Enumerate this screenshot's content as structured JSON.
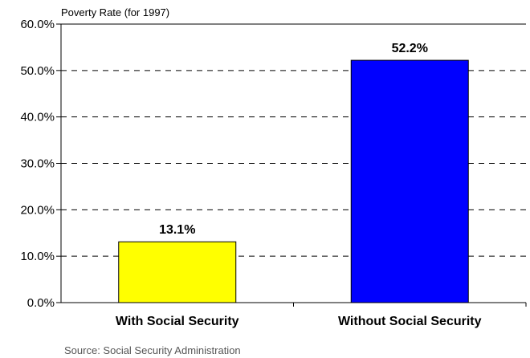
{
  "chart_data": {
    "type": "bar",
    "ylabel": "Poverty Rate (for 1997)",
    "categories": [
      "With Social Security",
      "Without Social Security"
    ],
    "values": [
      13.1,
      52.2
    ],
    "data_labels": [
      "13.1%",
      "52.2%"
    ],
    "colors": [
      "#ffff00",
      "#0000ff"
    ],
    "ylim": [
      0,
      60
    ],
    "yticks": [
      0,
      10,
      20,
      30,
      40,
      50,
      60
    ],
    "ytick_labels": [
      "0.0%",
      "10.0%",
      "20.0%",
      "30.0%",
      "40.0%",
      "50.0%",
      "60.0%"
    ],
    "grid": true,
    "grid_style": "dashed",
    "source": "Source: Social Security Administration"
  }
}
